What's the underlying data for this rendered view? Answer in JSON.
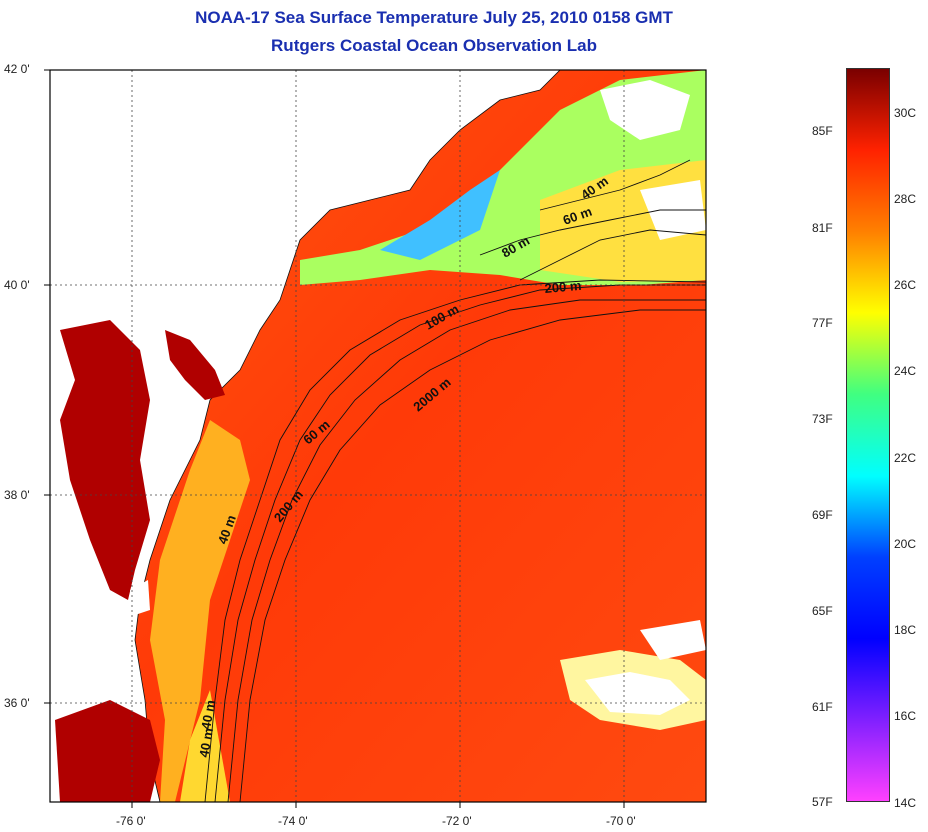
{
  "title": {
    "line1": "NOAA-17 Sea Surface Temperature July 25, 2010 0158 GMT",
    "line2": "Rutgers Coastal Ocean Observation Lab"
  },
  "axes": {
    "lat_labels": [
      "42 0'",
      "40 0'",
      "38 0'",
      "36 0'"
    ],
    "lon_labels": [
      "-76 0'",
      "-74 0'",
      "-72 0'",
      "-70 0'"
    ]
  },
  "contours": {
    "c40a": "40 m",
    "c60a": "60 m",
    "c80": "80 m",
    "c200a": "200 m",
    "c100": "100 m",
    "c2000": "2000 m",
    "c60b": "60 m",
    "c200b": "200 m",
    "c40b": "40 m",
    "c40c": "40 m",
    "c40d": "40 m"
  },
  "colorbar": {
    "f_labels": [
      "85F",
      "81F",
      "77F",
      "73F",
      "69F",
      "65F",
      "61F",
      "57F"
    ],
    "c_labels": [
      "30C",
      "28C",
      "26C",
      "24C",
      "22C",
      "20C",
      "18C",
      "16C",
      "14C"
    ],
    "colors": [
      "#7a0000",
      "#ff2200",
      "#ff8000",
      "#ffff00",
      "#40ff80",
      "#00ffff",
      "#0040ff",
      "#0000ff",
      "#8020ff",
      "#ff40ff"
    ]
  }
}
